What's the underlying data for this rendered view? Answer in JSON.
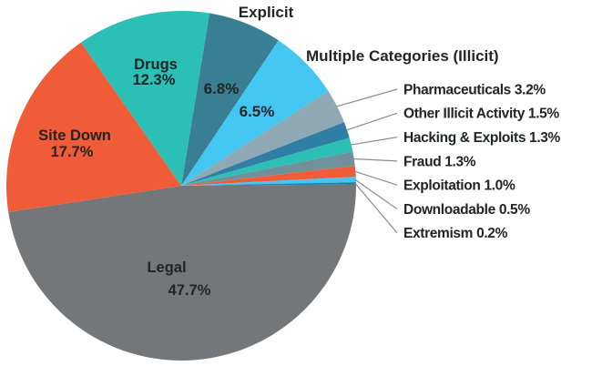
{
  "chart_data": {
    "type": "pie",
    "title": "",
    "unit": "%",
    "direction": "clockwise",
    "start_angle_deg": 9.3,
    "legend_position": "right-callouts",
    "background_color": "#FFFFFF",
    "text_color": "#222426",
    "leader_line_color": "#8A8C8E",
    "slices": [
      {
        "id": "explicit",
        "label": "Explicit",
        "value": 6.8,
        "color": "#397F93",
        "label_mode": "float-name-inside-pct"
      },
      {
        "id": "multiple-categories-illicit",
        "label": "Multiple Categories (Illicit)",
        "value": 6.5,
        "color": "#43C6F1",
        "label_mode": "float-name-inside-pct"
      },
      {
        "id": "pharmaceuticals",
        "label": "Pharmaceuticals",
        "value": 3.2,
        "color": "#8FA9B4",
        "label_mode": "leader"
      },
      {
        "id": "other-illicit-activity",
        "label": "Other Illicit Activity",
        "value": 1.5,
        "color": "#2F7EA4",
        "label_mode": "leader"
      },
      {
        "id": "hacking-exploits",
        "label": "Hacking & Exploits",
        "value": 1.3,
        "color": "#2CBFB5",
        "label_mode": "leader"
      },
      {
        "id": "fraud",
        "label": "Fraud",
        "value": 1.3,
        "color": "#70909A",
        "label_mode": "leader"
      },
      {
        "id": "exploitation",
        "label": "Exploitation",
        "value": 1.0,
        "color": "#F15C38",
        "label_mode": "leader"
      },
      {
        "id": "downloadable",
        "label": "Downloadable",
        "value": 0.5,
        "color": "#43C6F1",
        "label_mode": "leader"
      },
      {
        "id": "extremism",
        "label": "Extremism",
        "value": 0.2,
        "color": "#1C7FAD",
        "label_mode": "leader"
      },
      {
        "id": "legal",
        "label": "Legal",
        "value": 47.7,
        "color": "#747779",
        "label_mode": "inside"
      },
      {
        "id": "site-down",
        "label": "Site Down",
        "value": 17.7,
        "color": "#F15C38",
        "label_mode": "inside"
      },
      {
        "id": "drugs",
        "label": "Drugs",
        "value": 12.3,
        "color": "#2CBFB5",
        "label_mode": "inside"
      }
    ]
  }
}
